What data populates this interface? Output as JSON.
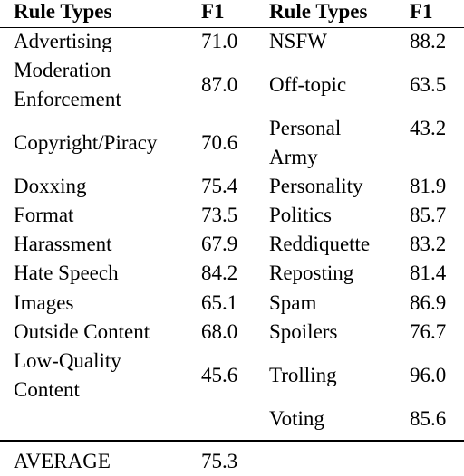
{
  "headers": {
    "rule_types_left": "Rule Types",
    "f1_left": "F1",
    "rule_types_right": "Rule Types",
    "f1_right": "F1"
  },
  "left_rows": [
    {
      "rule": "Advertising",
      "f1": "71.0"
    },
    {
      "rule": "Moderation\nEnforcement",
      "f1": "87.0"
    },
    {
      "rule": "Copyright/Piracy",
      "f1": "70.6"
    },
    {
      "rule": "Doxxing",
      "f1": "75.4"
    },
    {
      "rule": "Format",
      "f1": "73.5"
    },
    {
      "rule": "Harassment",
      "f1": "67.9"
    },
    {
      "rule": "Hate Speech",
      "f1": "84.2"
    },
    {
      "rule": "Images",
      "f1": "65.1"
    },
    {
      "rule": "Outside Content",
      "f1": "68.0"
    },
    {
      "rule": "Low-Quality\nContent",
      "f1": "45.6"
    }
  ],
  "right_rows": [
    {
      "rule": "NSFW",
      "f1": "88.2"
    },
    {
      "rule": "Off-topic",
      "f1": "63.5"
    },
    {
      "rule": "Personal\nArmy",
      "f1": "43.2"
    },
    {
      "rule": "Personality",
      "f1": "81.9"
    },
    {
      "rule": "Politics",
      "f1": "85.7"
    },
    {
      "rule": "Reddiquette",
      "f1": "83.2"
    },
    {
      "rule": "Reposting",
      "f1": "81.4"
    },
    {
      "rule": "Spam",
      "f1": "86.9"
    },
    {
      "rule": "Spoilers",
      "f1": "76.7"
    },
    {
      "rule": "Trolling",
      "f1": "96.0"
    },
    {
      "rule": "Voting",
      "f1": "85.6"
    }
  ],
  "average": {
    "label": "AVERAGE",
    "f1": "75.3"
  }
}
